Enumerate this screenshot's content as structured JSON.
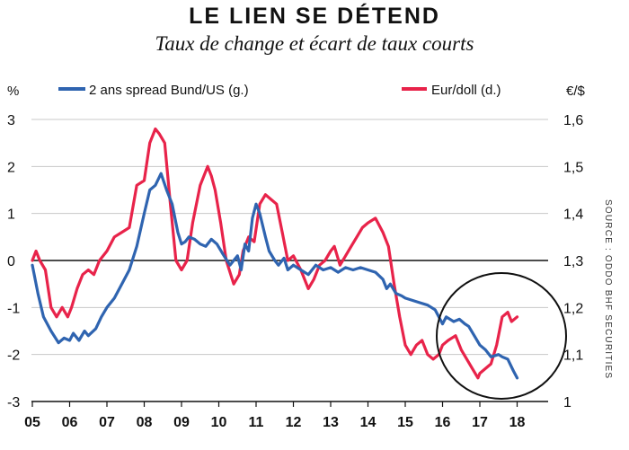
{
  "header": {
    "title": "LE LIEN SE DÉTEND",
    "subtitle": "Taux de change et écart de taux courts",
    "source": "SOURCE : ODDO BHF SECURITIES"
  },
  "chart_data": {
    "type": "line",
    "left_axis": {
      "unit": "%",
      "ticks": [
        "3",
        "2",
        "1",
        "0",
        "-1",
        "-2",
        "-3"
      ],
      "ylim": [
        -3,
        3
      ]
    },
    "right_axis": {
      "unit": "€/$",
      "ticks": [
        "1,6",
        "1,5",
        "1,4",
        "1,3",
        "1,2",
        "1,1",
        "1"
      ],
      "ylim": [
        1.0,
        1.6
      ]
    },
    "x_ticks": [
      "05",
      "06",
      "07",
      "08",
      "09",
      "10",
      "11",
      "12",
      "13",
      "14",
      "15",
      "16",
      "17",
      "18"
    ],
    "grid": true,
    "legend_placement": "top",
    "annotation": "circle around 2017-2018",
    "series": [
      {
        "name": "2 ans spread Bund/US (g.)",
        "axis": "left",
        "color": "#2f64b0",
        "x": [
          2005.0,
          2005.15,
          2005.3,
          2005.5,
          2005.7,
          2005.85,
          2006.0,
          2006.1,
          2006.25,
          2006.4,
          2006.5,
          2006.7,
          2006.85,
          2007.0,
          2007.2,
          2007.4,
          2007.6,
          2007.8,
          2008.0,
          2008.15,
          2008.3,
          2008.45,
          2008.6,
          2008.75,
          2008.9,
          2009.0,
          2009.1,
          2009.2,
          2009.35,
          2009.5,
          2009.65,
          2009.8,
          2009.95,
          2010.1,
          2010.3,
          2010.5,
          2010.6,
          2010.7,
          2010.8,
          2010.9,
          2011.0,
          2011.1,
          2011.25,
          2011.35,
          2011.5,
          2011.6,
          2011.75,
          2011.85,
          2012.0,
          2012.2,
          2012.4,
          2012.6,
          2012.8,
          2013.0,
          2013.2,
          2013.4,
          2013.6,
          2013.8,
          2014.0,
          2014.2,
          2014.4,
          2014.5,
          2014.6,
          2014.75,
          2014.9,
          2015.0,
          2015.2,
          2015.4,
          2015.6,
          2015.8,
          2016.0,
          2016.1,
          2016.3,
          2016.45,
          2016.6,
          2016.7,
          2016.85,
          2017.0,
          2017.15,
          2017.3,
          2017.5,
          2017.6,
          2017.75,
          2017.9,
          2018.0
        ],
        "values": [
          -0.1,
          -0.7,
          -1.2,
          -1.5,
          -1.75,
          -1.65,
          -1.7,
          -1.55,
          -1.7,
          -1.5,
          -1.6,
          -1.45,
          -1.2,
          -1.0,
          -0.8,
          -0.5,
          -0.2,
          0.3,
          1.0,
          1.5,
          1.6,
          1.85,
          1.5,
          1.2,
          0.6,
          0.35,
          0.4,
          0.5,
          0.45,
          0.35,
          0.3,
          0.45,
          0.35,
          0.15,
          -0.1,
          0.1,
          -0.2,
          0.35,
          0.2,
          0.9,
          1.2,
          1.0,
          0.5,
          0.2,
          0.0,
          -0.1,
          0.05,
          -0.2,
          -0.1,
          -0.2,
          -0.3,
          -0.1,
          -0.2,
          -0.15,
          -0.25,
          -0.15,
          -0.2,
          -0.15,
          -0.2,
          -0.25,
          -0.4,
          -0.6,
          -0.5,
          -0.7,
          -0.75,
          -0.8,
          -0.85,
          -0.9,
          -0.95,
          -1.05,
          -1.35,
          -1.2,
          -1.3,
          -1.25,
          -1.35,
          -1.4,
          -1.6,
          -1.8,
          -1.9,
          -2.05,
          -2.0,
          -2.05,
          -2.1,
          -2.35,
          -2.5
        ]
      },
      {
        "name": "Eur/doll (d.)",
        "axis": "right",
        "color": "#e8234a",
        "x": [
          2005.0,
          2005.1,
          2005.2,
          2005.35,
          2005.5,
          2005.65,
          2005.8,
          2005.95,
          2006.05,
          2006.2,
          2006.35,
          2006.5,
          2006.65,
          2006.8,
          2007.0,
          2007.2,
          2007.4,
          2007.6,
          2007.8,
          2008.0,
          2008.15,
          2008.3,
          2008.4,
          2008.55,
          2008.7,
          2008.85,
          2009.0,
          2009.15,
          2009.3,
          2009.5,
          2009.7,
          2009.8,
          2009.9,
          2010.05,
          2010.2,
          2010.4,
          2010.55,
          2010.65,
          2010.8,
          2010.95,
          2011.1,
          2011.25,
          2011.4,
          2011.55,
          2011.7,
          2011.85,
          2012.0,
          2012.2,
          2012.4,
          2012.55,
          2012.7,
          2012.85,
          2013.0,
          2013.1,
          2013.25,
          2013.4,
          2013.55,
          2013.7,
          2013.85,
          2014.0,
          2014.2,
          2014.4,
          2014.55,
          2014.7,
          2014.85,
          2015.0,
          2015.15,
          2015.3,
          2015.45,
          2015.6,
          2015.75,
          2015.9,
          2016.0,
          2016.15,
          2016.35,
          2016.5,
          2016.65,
          2016.8,
          2016.95,
          2017.0,
          2017.15,
          2017.3,
          2017.45,
          2017.6,
          2017.75,
          2017.85,
          2018.0
        ],
        "values": [
          1.3,
          1.32,
          1.3,
          1.28,
          1.2,
          1.18,
          1.2,
          1.18,
          1.2,
          1.24,
          1.27,
          1.28,
          1.27,
          1.3,
          1.32,
          1.35,
          1.36,
          1.37,
          1.46,
          1.47,
          1.55,
          1.58,
          1.57,
          1.55,
          1.42,
          1.3,
          1.28,
          1.3,
          1.38,
          1.46,
          1.5,
          1.48,
          1.45,
          1.38,
          1.3,
          1.25,
          1.27,
          1.32,
          1.35,
          1.34,
          1.42,
          1.44,
          1.43,
          1.42,
          1.36,
          1.3,
          1.31,
          1.28,
          1.24,
          1.26,
          1.29,
          1.3,
          1.32,
          1.33,
          1.29,
          1.31,
          1.33,
          1.35,
          1.37,
          1.38,
          1.39,
          1.36,
          1.33,
          1.25,
          1.18,
          1.12,
          1.1,
          1.12,
          1.13,
          1.1,
          1.09,
          1.1,
          1.12,
          1.13,
          1.14,
          1.11,
          1.09,
          1.07,
          1.05,
          1.06,
          1.07,
          1.08,
          1.12,
          1.18,
          1.19,
          1.17,
          1.18
        ]
      }
    ]
  }
}
